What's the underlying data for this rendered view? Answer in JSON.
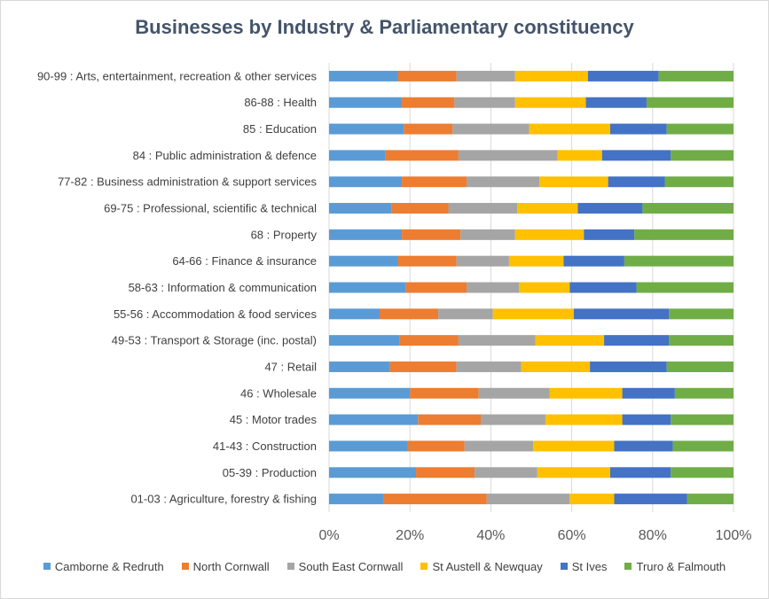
{
  "chart_data": {
    "type": "bar",
    "orientation": "horizontal",
    "stacked": "percent",
    "title": "Businesses by Industry & Parliamentary constituency",
    "xlabel": "",
    "ylabel": "",
    "xlim": [
      0,
      100
    ],
    "x_ticks": [
      "0%",
      "20%",
      "40%",
      "60%",
      "80%",
      "100%"
    ],
    "grid": true,
    "legend_position": "bottom",
    "categories": [
      "90-99 : Arts, entertainment, recreation & other services",
      "86-88 : Health",
      "85 : Education",
      "84 : Public administration & defence",
      "77-82 : Business administration & support services",
      "69-75 : Professional, scientific & technical",
      "68 : Property",
      "64-66 : Finance & insurance",
      "58-63 : Information & communication",
      "55-56 : Accommodation & food services",
      "49-53 : Transport & Storage (inc. postal)",
      "47 : Retail",
      "46 : Wholesale",
      "45 : Motor trades",
      "41-43 : Construction",
      "05-39 : Production",
      "01-03 : Agriculture, forestry & fishing"
    ],
    "series": [
      {
        "name": "Camborne & Redruth",
        "color": "#5b9bd5",
        "values": [
          17,
          18,
          18.5,
          14,
          18,
          15.5,
          18,
          17,
          19,
          12.5,
          17.5,
          15,
          20,
          22,
          19.5,
          21.5,
          13.5
        ]
      },
      {
        "name": "North Cornwall",
        "color": "#ed7d31",
        "values": [
          14.5,
          13,
          12,
          18,
          16,
          14,
          14.5,
          14.5,
          15,
          14.5,
          14.5,
          16.5,
          17,
          15.5,
          14,
          14.5,
          25.5
        ]
      },
      {
        "name": "South East Cornwall",
        "color": "#a5a5a5",
        "values": [
          14.5,
          15,
          19,
          24.5,
          18,
          17,
          13.5,
          13,
          13,
          13.5,
          19,
          16,
          17.5,
          16,
          17,
          15.5,
          20.5
        ]
      },
      {
        "name": "St Austell & Newquay",
        "color": "#ffc000",
        "values": [
          18,
          17.5,
          20,
          11,
          17,
          15,
          17,
          13.5,
          12.5,
          20,
          17,
          17,
          18,
          19,
          20,
          18,
          11
        ]
      },
      {
        "name": "St Ives",
        "color": "#4472c4",
        "values": [
          17.5,
          15,
          14,
          17,
          14,
          16,
          12.5,
          15,
          16.5,
          23.5,
          16,
          19,
          13,
          12,
          14.5,
          15,
          18
        ]
      },
      {
        "name": "Truro & Falmouth",
        "color": "#70ad47",
        "values": [
          18.5,
          21.5,
          16.5,
          15.5,
          17,
          22.5,
          24.5,
          27,
          24,
          16,
          16,
          16.5,
          14.5,
          15.5,
          15,
          15.5,
          11.5
        ]
      }
    ]
  }
}
